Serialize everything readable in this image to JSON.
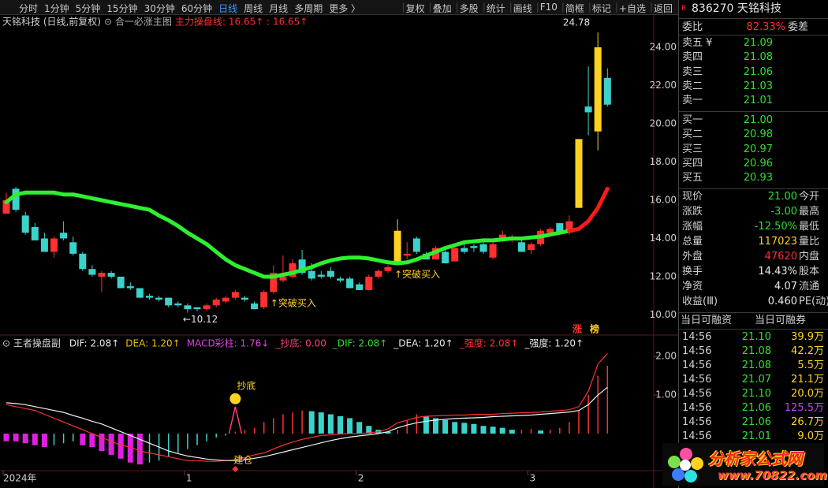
{
  "toolbar": {
    "periods": [
      "分时",
      "1分钟",
      "5分钟",
      "15分钟",
      "30分钟",
      "60分钟",
      "日线",
      "周线",
      "月线",
      "多周期",
      "更多 〉"
    ],
    "active_index": 6,
    "tools": [
      "复权",
      "叠加",
      "多股",
      "统计",
      "画线",
      "F10",
      "简框",
      "标记",
      "+自选",
      "返回"
    ]
  },
  "chart_data": [
    {
      "type": "candlestick",
      "title": "天铭科技 (日线,前复权)",
      "indicator": "⊙ 合一必涨主图",
      "legend": "主力操盘线: 16.65↑ : 16.65↑",
      "open": [
        15.3,
        16.6,
        15.2,
        14.6,
        14.0,
        13.3,
        14.3,
        13.8,
        13.2,
        12.4,
        12.0,
        12.2,
        12.0,
        11.5,
        11.4,
        11.0,
        10.9,
        10.9,
        10.6,
        10.5,
        10.4,
        10.3,
        10.5,
        10.7,
        10.9,
        10.9,
        10.6,
        10.4,
        11.2,
        11.8,
        12.0,
        12.9,
        12.3,
        12.1,
        12.3,
        11.9,
        11.9,
        11.6,
        11.3,
        12.0,
        12.3,
        12.7,
        13.1,
        14.0,
        13.2,
        12.9,
        13.3,
        12.8,
        13.5,
        13.6,
        13.7,
        13.0,
        14.0,
        14.0,
        13.8,
        13.4,
        13.7,
        14.3,
        14.8,
        14.3,
        15.6,
        20.9,
        19.6,
        22.4
      ],
      "close": [
        16.0,
        15.5,
        14.3,
        13.9,
        13.3,
        14.0,
        14.0,
        13.2,
        12.4,
        12.1,
        12.2,
        12.0,
        11.4,
        11.4,
        10.9,
        10.9,
        10.8,
        10.5,
        10.5,
        10.3,
        10.3,
        10.5,
        10.8,
        10.9,
        11.2,
        10.8,
        10.3,
        11.2,
        12.2,
        12.0,
        12.7,
        12.2,
        11.9,
        12.0,
        12.0,
        11.8,
        11.4,
        11.3,
        12.0,
        12.3,
        12.5,
        14.4,
        13.2,
        13.3,
        12.9,
        13.5,
        12.7,
        13.5,
        13.3,
        13.5,
        13.3,
        13.7,
        14.2,
        14.1,
        13.3,
        13.7,
        14.4,
        14.5,
        14.3,
        14.9,
        19.2,
        20.6,
        24.0,
        21.0
      ],
      "high": [
        16.4,
        16.7,
        15.4,
        14.8,
        14.3,
        14.1,
        14.9,
        14.1,
        13.3,
        12.6,
        12.3,
        12.3,
        12.0,
        11.7,
        11.4,
        11.1,
        11.0,
        10.9,
        10.7,
        10.6,
        10.4,
        10.6,
        10.9,
        11.0,
        11.3,
        11.0,
        10.7,
        11.3,
        12.6,
        13.1,
        12.9,
        13.4,
        12.7,
        12.3,
        12.5,
        12.0,
        12.0,
        11.7,
        12.1,
        12.4,
        12.6,
        15.0,
        13.8,
        14.1,
        13.3,
        13.6,
        13.4,
        13.6,
        13.8,
        13.7,
        14.0,
        13.9,
        14.4,
        14.2,
        13.9,
        13.8,
        14.5,
        14.6,
        14.8,
        15.2,
        19.2,
        23.0,
        24.78,
        22.9
      ],
      "low": [
        15.3,
        15.4,
        14.2,
        13.9,
        13.3,
        13.0,
        13.9,
        13.1,
        12.3,
        12.0,
        11.2,
        11.9,
        11.4,
        11.3,
        10.9,
        10.8,
        10.7,
        10.4,
        10.4,
        10.12,
        10.2,
        10.2,
        10.4,
        10.6,
        10.8,
        10.7,
        10.3,
        10.3,
        11.1,
        11.7,
        11.9,
        12.1,
        11.8,
        11.9,
        11.9,
        11.7,
        11.4,
        11.3,
        11.3,
        11.9,
        12.2,
        12.6,
        12.9,
        13.2,
        12.9,
        12.9,
        12.7,
        12.8,
        13.2,
        13.3,
        13.2,
        12.9,
        13.8,
        13.8,
        13.3,
        13.2,
        13.6,
        14.1,
        14.2,
        14.2,
        15.6,
        19.4,
        18.6,
        20.9
      ],
      "up_color": "#ff3030",
      "down_color": "#3cd2cc",
      "highlight_indices": [
        41,
        60,
        62
      ],
      "highlight_color": "#ffd21f",
      "lines": [
        {
          "color": "#2ef02e",
          "values": [
            15.9,
            16.3,
            16.4,
            16.4,
            16.4,
            16.4,
            16.3,
            16.3,
            16.2,
            16.1,
            16.0,
            15.9,
            15.8,
            15.7,
            15.6,
            15.5,
            15.2,
            14.95,
            14.65,
            14.3,
            14.0,
            13.7,
            13.3,
            12.9,
            12.6,
            12.4,
            12.2,
            12.0,
            12.0,
            12.1,
            12.2,
            12.35,
            12.5,
            12.7,
            12.85,
            12.95,
            13.0,
            13.0,
            12.95,
            12.85,
            12.75,
            12.7,
            12.75,
            12.9,
            13.1,
            13.3,
            13.5,
            13.65,
            13.8,
            13.85,
            13.9,
            13.9,
            13.95,
            14.0,
            14.0,
            14.05,
            14.1,
            14.2,
            14.3,
            14.4,
            null,
            null,
            null,
            null
          ]
        },
        {
          "color": "#ff1a1a",
          "values": [
            null,
            null,
            null,
            null,
            null,
            null,
            null,
            null,
            null,
            null,
            null,
            null,
            null,
            null,
            null,
            null,
            null,
            null,
            null,
            null,
            null,
            null,
            null,
            null,
            null,
            null,
            null,
            null,
            null,
            null,
            null,
            null,
            null,
            null,
            null,
            null,
            null,
            null,
            null,
            null,
            null,
            null,
            null,
            null,
            null,
            null,
            null,
            null,
            null,
            null,
            null,
            null,
            null,
            null,
            null,
            null,
            null,
            null,
            null,
            14.4,
            14.5,
            14.9,
            15.6,
            16.6
          ]
        }
      ],
      "annotations": [
        {
          "text": "24.78",
          "index": 62,
          "value": 24.78,
          "color": "#e0e0e0"
        },
        {
          "text": "←10.12",
          "index": 19,
          "value": 10.12,
          "color": "#e0e0e0"
        },
        {
          "text": "↑突破买入",
          "index": 28,
          "value": 11.1,
          "color": "#ffd21f"
        },
        {
          "text": "↑突破买入",
          "index": 41,
          "value": 12.6,
          "color": "#ffd21f"
        }
      ],
      "badges": [
        "涨",
        "榜"
      ],
      "ylim": [
        9.07,
        25.65
      ],
      "yticks": [
        {
          "value": 10,
          "label": "10.00"
        },
        {
          "value": 12,
          "label": "12.00"
        },
        {
          "value": 14,
          "label": "14.00"
        },
        {
          "value": 16,
          "label": "16.00"
        },
        {
          "value": 18,
          "label": "18.00"
        },
        {
          "value": 20,
          "label": "20.00"
        },
        {
          "value": 22,
          "label": "22.00"
        },
        {
          "value": 24,
          "label": "24.00"
        }
      ]
    },
    {
      "type": "macd",
      "title": "⊙ 王者操盘副",
      "legend": [
        {
          "text": "DIF: 2.08↑",
          "color": "#e8e8e8"
        },
        {
          "text": "DEA: 1.20↑",
          "color": "#e6c200"
        },
        {
          "text": "MACD彩柱: 1.76↓",
          "color": "#e040e0"
        },
        {
          "text": "_抄底: 0.00",
          "color": "#ff3c80"
        },
        {
          "text": "_DIF: 2.08↑",
          "color": "#2ee02e"
        },
        {
          "text": "_DEA: 1.20↑",
          "color": "#e8e8e8"
        },
        {
          "text": "_强度: 2.08↑",
          "color": "#ff3030"
        },
        {
          "text": "_强度: 1.20↑",
          "color": "#e8e8e8"
        }
      ],
      "categories": [
        "2024年",
        null,
        null,
        null,
        null,
        null,
        null,
        null,
        null,
        null,
        null,
        null,
        null,
        null,
        null,
        null,
        null,
        null,
        null,
        "1",
        null,
        null,
        null,
        null,
        null,
        null,
        null,
        null,
        null,
        null,
        null,
        null,
        null,
        null,
        null,
        null,
        null,
        "2",
        null,
        null,
        null,
        null,
        null,
        null,
        null,
        null,
        null,
        null,
        null,
        null,
        null,
        null,
        null,
        null,
        null,
        "3",
        null,
        null,
        null,
        null,
        null,
        null,
        null,
        null
      ],
      "histogram": [
        -0.2,
        -0.2,
        -0.25,
        -0.3,
        -0.35,
        -0.3,
        -0.25,
        -0.2,
        -0.3,
        -0.35,
        -0.45,
        -0.55,
        -0.65,
        -0.75,
        -0.8,
        -0.75,
        -0.7,
        -0.6,
        -0.5,
        -0.4,
        -0.3,
        -0.2,
        -0.1,
        -0.05,
        0.05,
        0.1,
        0.15,
        0.3,
        0.4,
        0.5,
        0.55,
        0.6,
        0.58,
        0.55,
        0.5,
        0.45,
        0.4,
        0.3,
        0.2,
        0.1,
        0.05,
        0.1,
        0.35,
        0.5,
        0.45,
        0.4,
        0.35,
        0.3,
        0.28,
        0.25,
        0.2,
        0.18,
        0.15,
        0.1,
        0.1,
        0.12,
        0.08,
        0.1,
        0.15,
        0.3,
        0.6,
        1.0,
        1.5,
        1.76
      ],
      "dif": [
        0.75,
        0.7,
        0.65,
        0.6,
        0.5,
        0.4,
        0.3,
        0.2,
        0.1,
        0.0,
        -0.1,
        -0.2,
        -0.3,
        -0.35,
        -0.45,
        -0.5,
        -0.55,
        -0.6,
        -0.65,
        -0.7,
        -0.7,
        -0.72,
        -0.72,
        -0.7,
        -0.68,
        -0.62,
        -0.55,
        -0.5,
        -0.4,
        -0.3,
        -0.22,
        -0.15,
        -0.1,
        -0.05,
        -0.03,
        -0.01,
        0.0,
        0.0,
        0.02,
        0.05,
        0.12,
        0.28,
        0.35,
        0.42,
        0.45,
        0.46,
        0.47,
        0.48,
        0.48,
        0.5,
        0.5,
        0.5,
        0.52,
        0.53,
        0.54,
        0.55,
        0.56,
        0.58,
        0.6,
        0.62,
        0.7,
        1.1,
        1.8,
        2.08
      ],
      "dea": [
        0.8,
        0.78,
        0.75,
        0.7,
        0.65,
        0.6,
        0.55,
        0.47,
        0.4,
        0.32,
        0.25,
        0.15,
        0.05,
        -0.05,
        -0.15,
        -0.25,
        -0.35,
        -0.45,
        -0.52,
        -0.58,
        -0.62,
        -0.66,
        -0.68,
        -0.7,
        -0.7,
        -0.68,
        -0.64,
        -0.6,
        -0.54,
        -0.48,
        -0.42,
        -0.36,
        -0.3,
        -0.24,
        -0.18,
        -0.13,
        -0.09,
        -0.06,
        -0.03,
        0.0,
        0.05,
        0.15,
        0.22,
        0.28,
        0.32,
        0.35,
        0.37,
        0.39,
        0.4,
        0.41,
        0.42,
        0.44,
        0.45,
        0.46,
        0.47,
        0.48,
        0.5,
        0.52,
        0.54,
        0.56,
        0.6,
        0.75,
        1.0,
        1.2
      ],
      "dif_color": "#ff3030",
      "dea_color": "#f0f0f0",
      "up_color": "#ff3030",
      "down_color": "#e020e0",
      "fade_color": "#3cd2cc",
      "signal": {
        "label": "抄底",
        "index": 24,
        "value": 0.7,
        "color": "#ff3c80"
      },
      "build": {
        "label": "建仓",
        "index": 24,
        "value": -0.7
      },
      "ylim": [
        -0.92,
        2.29
      ],
      "yticks": [
        {
          "value": 1,
          "label": "1.00"
        },
        {
          "value": 2,
          "label": "2.00"
        }
      ]
    }
  ],
  "quote_panel": {
    "code": "836270 天铭科技",
    "tag": "R",
    "weibi": {
      "label": "委比",
      "value": "82.33%",
      "label2": "委差"
    },
    "asks": [
      [
        "卖五 ¥",
        "21.09"
      ],
      [
        "卖四",
        "21.08"
      ],
      [
        "卖三",
        "21.06"
      ],
      [
        "卖二",
        "21.03"
      ],
      [
        "卖一",
        "21.01"
      ]
    ],
    "bids": [
      [
        "买一",
        "21.00"
      ],
      [
        "买二",
        "20.98"
      ],
      [
        "买三",
        "20.97"
      ],
      [
        "买四",
        "20.96"
      ],
      [
        "买五",
        "20.93"
      ]
    ],
    "quotes": [
      [
        "现价",
        "21.00",
        "今开"
      ],
      [
        "涨跌",
        "-3.00",
        "最高"
      ],
      [
        "涨幅",
        "-12.50%",
        "最低"
      ],
      [
        "总量",
        "117023",
        "量比"
      ],
      [
        "外盘",
        "47620",
        "内盘"
      ],
      [
        "换手",
        "14.43%",
        "股本"
      ],
      [
        "净资",
        "4.07",
        "流通"
      ],
      [
        "收益(Ⅲ)",
        "0.460",
        "PE(动)"
      ]
    ],
    "quote_colors": [
      "#2ee02e",
      "#2ee02e",
      "#2ee02e",
      "#ffd21f",
      "#ff3030",
      "#e8e8e8",
      "#e8e8e8",
      "#e8e8e8"
    ],
    "margin": [
      "当日可融资",
      "当日可融券"
    ],
    "ticks": [
      [
        "14:56",
        "21.10",
        "39.9万"
      ],
      [
        "14:56",
        "21.08",
        "42.2万"
      ],
      [
        "14:56",
        "21.08",
        "5.5万"
      ],
      [
        "14:56",
        "21.07",
        "21.1万"
      ],
      [
        "14:56",
        "21.10",
        "20.0万"
      ],
      [
        "14:56",
        "21.06",
        "125.5万"
      ],
      [
        "14:56",
        "21.06",
        "26.7万"
      ],
      [
        "14:56",
        "21.01",
        "9.0万"
      ]
    ],
    "tick_volume_colors": [
      "#ffd21f",
      "#ffd21f",
      "#ffd21f",
      "#ffd21f",
      "#ffd21f",
      "#c040ff",
      "#ffd21f",
      "#ffd21f"
    ]
  },
  "watermark": {
    "title": "分析家公式网",
    "url": "www.70822.com"
  }
}
